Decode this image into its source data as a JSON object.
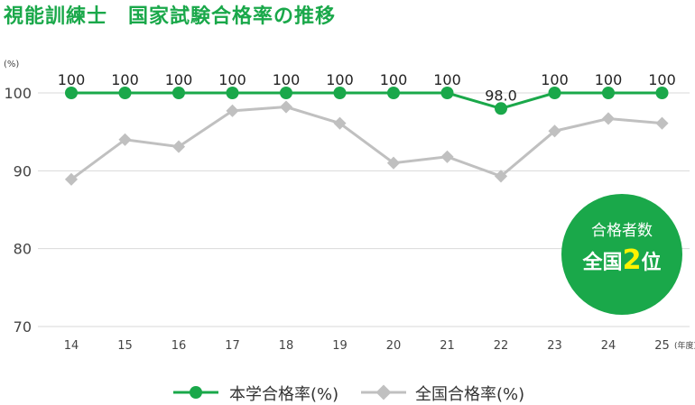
{
  "title": "視能訓練士　国家試験合格率の推移",
  "badge": {
    "top": "合格者数",
    "prefix": "全国",
    "rank": "2",
    "suffix": "位"
  },
  "legend": [
    "本学合格率(%)",
    "全国合格率(%)"
  ],
  "chart_data": {
    "type": "line",
    "x": [
      "14",
      "15",
      "16",
      "17",
      "18",
      "19",
      "20",
      "21",
      "22",
      "23",
      "24",
      "25"
    ],
    "xunit": "(年度)",
    "yunit": "(%)",
    "yticks": [
      "70",
      "80",
      "90",
      "100"
    ],
    "ylim": [
      70,
      100
    ],
    "series": [
      {
        "name": "本学合格率(%)",
        "color": "#1aa84a",
        "values": [
          100,
          100,
          100,
          100,
          100,
          100,
          100,
          100,
          98.0,
          100,
          100,
          100
        ],
        "labels": [
          "100",
          "100",
          "100",
          "100",
          "100",
          "100",
          "100",
          "100",
          "98.0",
          "100",
          "100",
          "100"
        ]
      },
      {
        "name": "全国合格率(%)",
        "color": "#c0c0c0",
        "values": [
          88.9,
          94.0,
          93.1,
          97.7,
          98.2,
          96.1,
          91.0,
          91.8,
          89.3,
          95.1,
          96.7,
          96.1
        ]
      }
    ]
  }
}
